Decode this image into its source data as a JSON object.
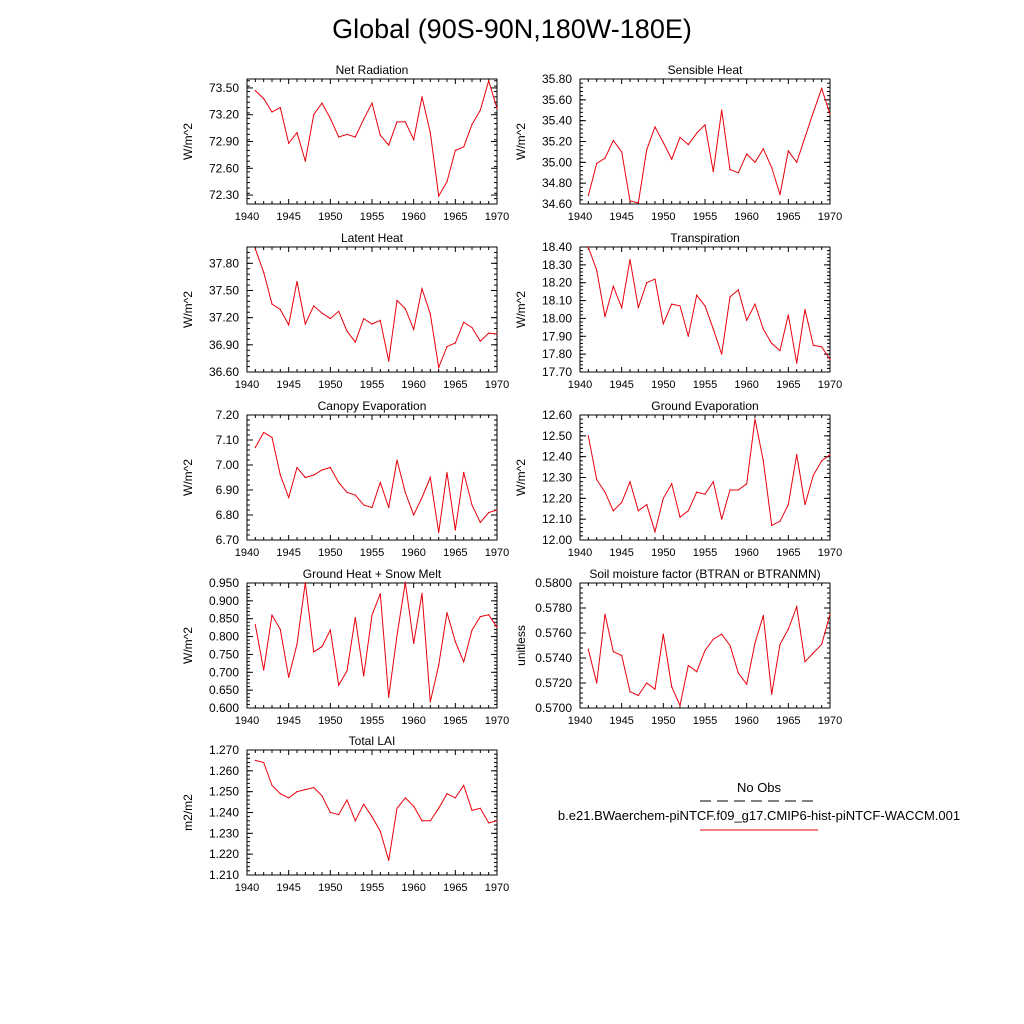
{
  "title": "Global (90S-90N,180W-180E)",
  "legend": {
    "obs_label": "No Obs",
    "case_label": "b.e21.BWaerchem-piNTCF.f09_g17.CMIP6-hist-piNTCF-WACCM.001",
    "obs_style": "dashed",
    "case_color": "#e8000b"
  },
  "chart_data": [
    {
      "type": "line",
      "title": "Net Radiation",
      "ylabel": "W/m^2",
      "xlim": [
        1940,
        1970
      ],
      "ylim": [
        72.2,
        73.6
      ],
      "xticks": [
        "1940",
        "1945",
        "1950",
        "1955",
        "1960",
        "1965",
        "1970"
      ],
      "yticks": [
        "72.30",
        "72.60",
        "72.90",
        "73.20",
        "73.50"
      ],
      "x": [
        1941,
        1942,
        1943,
        1944,
        1945,
        1946,
        1947,
        1948,
        1949,
        1950,
        1951,
        1952,
        1953,
        1954,
        1955,
        1956,
        1957,
        1958,
        1959,
        1960,
        1961,
        1962,
        1963,
        1964,
        1965,
        1966,
        1967,
        1968,
        1969,
        1970
      ],
      "series": [
        {
          "color": "#e8000b",
          "values": [
            73.47,
            73.38,
            73.23,
            73.28,
            72.88,
            73.0,
            72.68,
            73.2,
            73.33,
            73.16,
            72.95,
            72.98,
            72.95,
            73.15,
            73.33,
            72.97,
            72.86,
            73.12,
            73.12,
            72.92,
            73.4,
            73.0,
            72.29,
            72.45,
            72.8,
            72.84,
            73.09,
            73.25,
            73.58,
            73.27
          ]
        }
      ]
    },
    {
      "type": "line",
      "title": "Sensible Heat",
      "ylabel": "W/m^2",
      "xlim": [
        1940,
        1970
      ],
      "ylim": [
        34.6,
        35.8
      ],
      "xticks": [
        "1940",
        "1945",
        "1950",
        "1955",
        "1960",
        "1965",
        "1970"
      ],
      "yticks": [
        "34.60",
        "34.80",
        "35.00",
        "35.20",
        "35.40",
        "35.60",
        "35.80"
      ],
      "x": [
        1941,
        1942,
        1943,
        1944,
        1945,
        1946,
        1947,
        1948,
        1949,
        1950,
        1951,
        1952,
        1953,
        1954,
        1955,
        1956,
        1957,
        1958,
        1959,
        1960,
        1961,
        1962,
        1963,
        1964,
        1965,
        1966,
        1967,
        1968,
        1969,
        1970
      ],
      "series": [
        {
          "color": "#e8000b",
          "values": [
            34.68,
            34.99,
            35.04,
            35.21,
            35.1,
            34.63,
            34.61,
            35.12,
            35.34,
            35.19,
            35.03,
            35.24,
            35.17,
            35.28,
            35.36,
            34.91,
            35.5,
            34.93,
            34.9,
            35.08,
            35.0,
            35.13,
            34.95,
            34.69,
            35.11,
            35.0,
            35.24,
            35.48,
            35.71,
            35.46
          ]
        }
      ]
    },
    {
      "type": "line",
      "title": "Latent Heat",
      "ylabel": "W/m^2",
      "xlim": [
        1940,
        1970
      ],
      "ylim": [
        36.6,
        37.98
      ],
      "xticks": [
        "1940",
        "1945",
        "1950",
        "1955",
        "1960",
        "1965",
        "1970"
      ],
      "yticks": [
        "36.60",
        "36.90",
        "37.20",
        "37.50",
        "37.80"
      ],
      "x": [
        1941,
        1942,
        1943,
        1944,
        1945,
        1946,
        1947,
        1948,
        1949,
        1950,
        1951,
        1952,
        1953,
        1954,
        1955,
        1956,
        1957,
        1958,
        1959,
        1960,
        1961,
        1962,
        1963,
        1964,
        1965,
        1966,
        1967,
        1968,
        1969,
        1970
      ],
      "series": [
        {
          "color": "#e8000b",
          "values": [
            37.96,
            37.7,
            37.35,
            37.29,
            37.12,
            37.6,
            37.13,
            37.33,
            37.25,
            37.19,
            37.27,
            37.05,
            36.93,
            37.19,
            37.13,
            37.17,
            36.72,
            37.39,
            37.3,
            37.07,
            37.52,
            37.24,
            36.65,
            36.88,
            36.92,
            37.15,
            37.09,
            36.94,
            37.03,
            37.02
          ]
        }
      ]
    },
    {
      "type": "line",
      "title": "Transpiration",
      "ylabel": "W/m^2",
      "xlim": [
        1940,
        1970
      ],
      "ylim": [
        17.7,
        18.4
      ],
      "xticks": [
        "1940",
        "1945",
        "1950",
        "1955",
        "1960",
        "1965",
        "1970"
      ],
      "yticks": [
        "17.70",
        "17.80",
        "17.90",
        "18.00",
        "18.10",
        "18.20",
        "18.30",
        "18.40"
      ],
      "x": [
        1941,
        1942,
        1943,
        1944,
        1945,
        1946,
        1947,
        1948,
        1949,
        1950,
        1951,
        1952,
        1953,
        1954,
        1955,
        1956,
        1957,
        1958,
        1959,
        1960,
        1961,
        1962,
        1963,
        1964,
        1965,
        1966,
        1967,
        1968,
        1969,
        1970
      ],
      "series": [
        {
          "color": "#e8000b",
          "values": [
            18.4,
            18.27,
            18.01,
            18.18,
            18.06,
            18.33,
            18.06,
            18.2,
            18.22,
            17.97,
            18.08,
            18.07,
            17.9,
            18.13,
            18.07,
            17.94,
            17.8,
            18.12,
            18.16,
            17.99,
            18.08,
            17.94,
            17.86,
            17.82,
            18.02,
            17.75,
            18.05,
            17.85,
            17.84,
            17.77
          ]
        }
      ]
    },
    {
      "type": "line",
      "title": "Canopy Evaporation",
      "ylabel": "W/m^2",
      "xlim": [
        1940,
        1970
      ],
      "ylim": [
        6.7,
        7.2
      ],
      "xticks": [
        "1940",
        "1945",
        "1950",
        "1955",
        "1960",
        "1965",
        "1970"
      ],
      "yticks": [
        "6.70",
        "6.80",
        "6.90",
        "7.00",
        "7.10",
        "7.20"
      ],
      "x": [
        1941,
        1942,
        1943,
        1944,
        1945,
        1946,
        1947,
        1948,
        1949,
        1950,
        1951,
        1952,
        1953,
        1954,
        1955,
        1956,
        1957,
        1958,
        1959,
        1960,
        1961,
        1962,
        1963,
        1964,
        1965,
        1966,
        1967,
        1968,
        1969,
        1970
      ],
      "series": [
        {
          "color": "#e8000b",
          "values": [
            7.07,
            7.13,
            7.11,
            6.96,
            6.87,
            6.99,
            6.95,
            6.96,
            6.98,
            6.99,
            6.93,
            6.89,
            6.88,
            6.84,
            6.83,
            6.93,
            6.83,
            7.02,
            6.89,
            6.8,
            6.87,
            6.95,
            6.73,
            6.97,
            6.74,
            6.97,
            6.84,
            6.77,
            6.81,
            6.82
          ]
        }
      ]
    },
    {
      "type": "line",
      "title": "Ground Evaporation",
      "ylabel": "W/m^2",
      "xlim": [
        1940,
        1970
      ],
      "ylim": [
        12.0,
        12.6
      ],
      "xticks": [
        "1940",
        "1945",
        "1950",
        "1955",
        "1960",
        "1965",
        "1970"
      ],
      "yticks": [
        "12.00",
        "12.10",
        "12.20",
        "12.30",
        "12.40",
        "12.50",
        "12.60"
      ],
      "x": [
        1941,
        1942,
        1943,
        1944,
        1945,
        1946,
        1947,
        1948,
        1949,
        1950,
        1951,
        1952,
        1953,
        1954,
        1955,
        1956,
        1957,
        1958,
        1959,
        1960,
        1961,
        1962,
        1963,
        1964,
        1965,
        1966,
        1967,
        1968,
        1969,
        1970
      ],
      "series": [
        {
          "color": "#e8000b",
          "values": [
            12.5,
            12.29,
            12.23,
            12.14,
            12.18,
            12.28,
            12.14,
            12.17,
            12.04,
            12.2,
            12.27,
            12.11,
            12.14,
            12.23,
            12.22,
            12.28,
            12.1,
            12.24,
            12.24,
            12.27,
            12.58,
            12.38,
            12.07,
            12.09,
            12.17,
            12.41,
            12.17,
            12.31,
            12.38,
            12.41
          ]
        }
      ]
    },
    {
      "type": "line",
      "title": "Ground Heat + Snow Melt",
      "ylabel": "W/m^2",
      "xlim": [
        1940,
        1970
      ],
      "ylim": [
        0.6,
        0.95
      ],
      "xticks": [
        "1940",
        "1945",
        "1950",
        "1955",
        "1960",
        "1965",
        "1970"
      ],
      "yticks": [
        "0.600",
        "0.650",
        "0.700",
        "0.750",
        "0.800",
        "0.850",
        "0.900",
        "0.950"
      ],
      "x": [
        1941,
        1942,
        1943,
        1944,
        1945,
        1946,
        1947,
        1948,
        1949,
        1950,
        1951,
        1952,
        1953,
        1954,
        1955,
        1956,
        1957,
        1958,
        1959,
        1960,
        1961,
        1962,
        1963,
        1964,
        1965,
        1966,
        1967,
        1968,
        1969,
        1970
      ],
      "series": [
        {
          "color": "#e8000b",
          "values": [
            0.833,
            0.706,
            0.86,
            0.82,
            0.686,
            0.779,
            0.951,
            0.757,
            0.772,
            0.818,
            0.664,
            0.704,
            0.853,
            0.69,
            0.86,
            0.92,
            0.63,
            0.803,
            0.952,
            0.781,
            0.921,
            0.617,
            0.72,
            0.867,
            0.786,
            0.729,
            0.818,
            0.856,
            0.861,
            0.826
          ]
        }
      ]
    },
    {
      "type": "line",
      "title": "Soil moisture factor (BTRAN or BTRANMN)",
      "ylabel": "unitless",
      "xlim": [
        1940,
        1970
      ],
      "ylim": [
        0.57,
        0.58
      ],
      "xticks": [
        "1940",
        "1945",
        "1950",
        "1955",
        "1960",
        "1965",
        "1970"
      ],
      "yticks": [
        "0.5700",
        "0.5720",
        "0.5740",
        "0.5760",
        "0.5780",
        "0.5800"
      ],
      "x": [
        1941,
        1942,
        1943,
        1944,
        1945,
        1946,
        1947,
        1948,
        1949,
        1950,
        1951,
        1952,
        1953,
        1954,
        1955,
        1956,
        1957,
        1958,
        1959,
        1960,
        1961,
        1962,
        1963,
        1964,
        1965,
        1966,
        1967,
        1968,
        1969,
        1970
      ],
      "series": [
        {
          "color": "#e8000b",
          "values": [
            0.5747,
            0.572,
            0.5775,
            0.5745,
            0.5742,
            0.5713,
            0.571,
            0.572,
            0.5715,
            0.5759,
            0.5717,
            0.5702,
            0.5734,
            0.5729,
            0.5746,
            0.5755,
            0.5759,
            0.575,
            0.5728,
            0.5719,
            0.5752,
            0.5774,
            0.5711,
            0.5751,
            0.5763,
            0.5781,
            0.5737,
            0.5744,
            0.5751,
            0.5775
          ]
        }
      ]
    },
    {
      "type": "line",
      "title": "Total LAI",
      "ylabel": "m2/m2",
      "xlim": [
        1940,
        1970
      ],
      "ylim": [
        1.21,
        1.27
      ],
      "xticks": [
        "1940",
        "1945",
        "1950",
        "1955",
        "1960",
        "1965",
        "1970"
      ],
      "yticks": [
        "1.210",
        "1.220",
        "1.230",
        "1.240",
        "1.250",
        "1.260",
        "1.270"
      ],
      "x": [
        1941,
        1942,
        1943,
        1944,
        1945,
        1946,
        1947,
        1948,
        1949,
        1950,
        1951,
        1952,
        1953,
        1954,
        1955,
        1956,
        1957,
        1958,
        1959,
        1960,
        1961,
        1962,
        1963,
        1964,
        1965,
        1966,
        1967,
        1968,
        1969,
        1970
      ],
      "series": [
        {
          "color": "#e8000b",
          "values": [
            1.265,
            1.264,
            1.253,
            1.249,
            1.247,
            1.25,
            1.251,
            1.252,
            1.248,
            1.24,
            1.239,
            1.246,
            1.236,
            1.244,
            1.238,
            1.231,
            1.217,
            1.242,
            1.247,
            1.243,
            1.236,
            1.236,
            1.242,
            1.249,
            1.247,
            1.253,
            1.241,
            1.242,
            1.235,
            1.236
          ]
        }
      ]
    }
  ]
}
